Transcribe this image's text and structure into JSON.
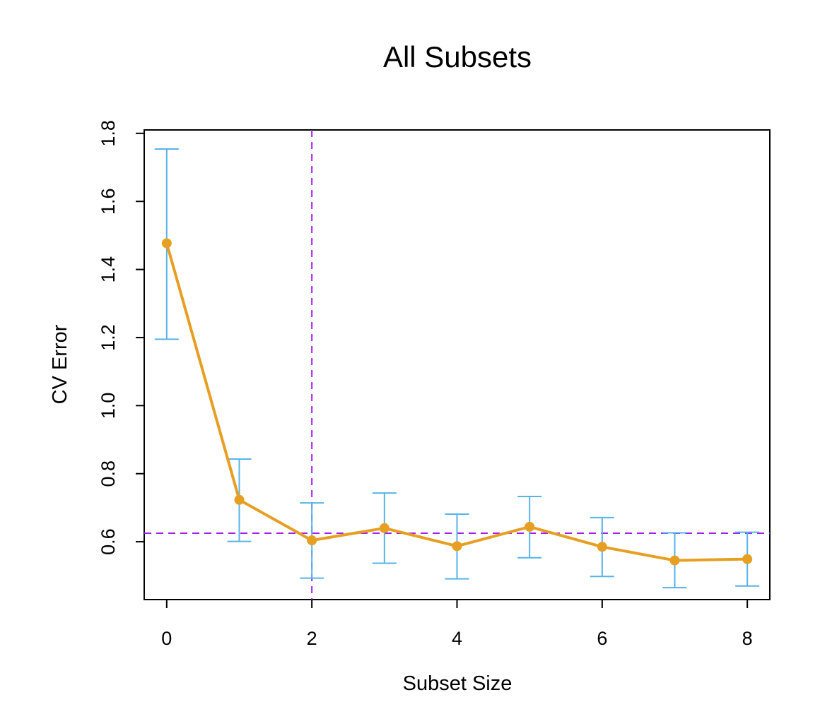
{
  "chart_data": {
    "type": "line",
    "title": "All Subsets",
    "xlabel": "Subset Size",
    "ylabel": "CV Error",
    "x": [
      0,
      1,
      2,
      3,
      4,
      5,
      6,
      7,
      8
    ],
    "series": [
      {
        "values": [
          1.477,
          0.723,
          0.604,
          0.64,
          0.587,
          0.644,
          0.585,
          0.545,
          0.549
        ],
        "error_lower": [
          1.195,
          0.601,
          0.493,
          0.537,
          0.491,
          0.553,
          0.498,
          0.465,
          0.47
        ],
        "error_upper": [
          1.754,
          0.843,
          0.714,
          0.743,
          0.681,
          0.733,
          0.671,
          0.626,
          0.628
        ],
        "color": "#e69f22",
        "error_color": "#56b4e9"
      }
    ],
    "reference_lines": {
      "vertical_x": 2,
      "horizontal_y": 0.625,
      "color": "#a020f0",
      "style": "dashed"
    },
    "xlim": [
      -0.31,
      8.31
    ],
    "ylim": [
      0.43,
      1.81
    ],
    "xticks": [
      0,
      2,
      4,
      6,
      8
    ],
    "xtick_labels": [
      "0",
      "2",
      "4",
      "6",
      "8"
    ],
    "yticks": [
      0.6,
      0.8,
      1.0,
      1.2,
      1.4,
      1.6,
      1.8
    ],
    "ytick_labels": [
      "0.6",
      "0.8",
      "1.0",
      "1.2",
      "1.4",
      "1.6",
      "1.8"
    ],
    "grid": false,
    "legend": "none"
  }
}
